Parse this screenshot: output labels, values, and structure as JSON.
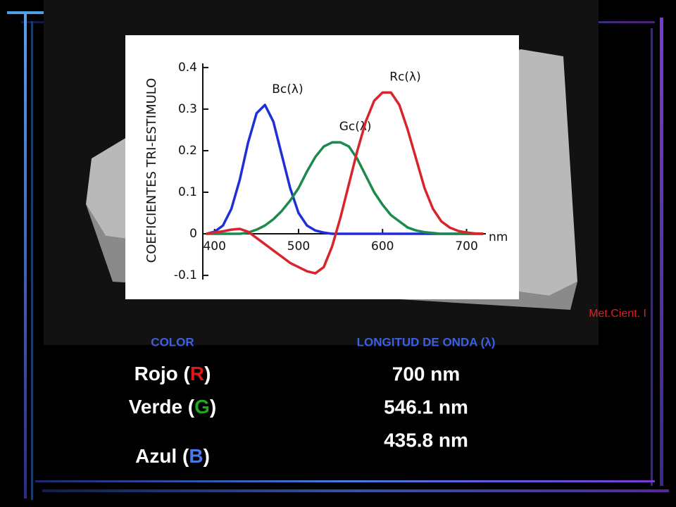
{
  "chart_data": {
    "type": "line",
    "y_axis_label": "COEFICIENTES TRI-ESTIMULO",
    "x_axis_label": "nm",
    "x": [
      390,
      400,
      410,
      420,
      430,
      440,
      450,
      460,
      470,
      480,
      490,
      500,
      510,
      520,
      530,
      540,
      550,
      560,
      570,
      580,
      590,
      600,
      610,
      620,
      630,
      640,
      650,
      660,
      670,
      680,
      690,
      700,
      710,
      720
    ],
    "series": [
      {
        "name": "Bc(λ)",
        "color": "#1f2fd8",
        "values": [
          0,
          0.005,
          0.02,
          0.06,
          0.13,
          0.22,
          0.29,
          0.31,
          0.27,
          0.19,
          0.11,
          0.05,
          0.02,
          0.008,
          0.003,
          0,
          0,
          0,
          0,
          0,
          0,
          0,
          0,
          0,
          0,
          0,
          0,
          0,
          0,
          0,
          0,
          0,
          0,
          0
        ]
      },
      {
        "name": "Gc(λ)",
        "color": "#1c8a4c",
        "values": [
          0,
          0,
          0,
          0,
          0,
          0.003,
          0.01,
          0.02,
          0.035,
          0.055,
          0.08,
          0.11,
          0.15,
          0.185,
          0.21,
          0.22,
          0.22,
          0.21,
          0.18,
          0.14,
          0.1,
          0.07,
          0.045,
          0.03,
          0.015,
          0.008,
          0.004,
          0.002,
          0,
          0,
          0,
          0,
          0,
          0
        ]
      },
      {
        "name": "Rc(λ)",
        "color": "#d8242a",
        "values": [
          0,
          0.003,
          0.006,
          0.01,
          0.012,
          0.005,
          -0.01,
          -0.025,
          -0.04,
          -0.055,
          -0.07,
          -0.08,
          -0.09,
          -0.095,
          -0.08,
          -0.03,
          0.04,
          0.12,
          0.2,
          0.27,
          0.32,
          0.34,
          0.34,
          0.31,
          0.25,
          0.18,
          0.11,
          0.06,
          0.03,
          0.015,
          0.007,
          0.003,
          0.001,
          0
        ]
      }
    ],
    "xlim": [
      386,
      723
    ],
    "xticks": [
      400,
      500,
      600,
      700
    ],
    "ylim": [
      -0.11,
      0.41
    ],
    "yticks": [
      -0.1,
      0,
      0.1,
      0.2,
      0.3,
      0.4
    ]
  },
  "footer": "Met.Cient. I",
  "table": {
    "headers": [
      "COLOR",
      "LONGITUD DE ONDA (λ)"
    ],
    "colors": [
      {
        "before": "Rojo (",
        "letter": "R",
        "after": ")",
        "letter_color": "#e01818"
      },
      {
        "before": "Verde (",
        "letter": "G",
        "after": ")",
        "letter_color": "#1fa81f"
      },
      {
        "before": "Azul (",
        "letter": "B",
        "after": ")",
        "letter_color": "#4a78e8"
      }
    ],
    "wavelengths": [
      "700 nm",
      "546.1 nm",
      "435.8 nm"
    ]
  }
}
